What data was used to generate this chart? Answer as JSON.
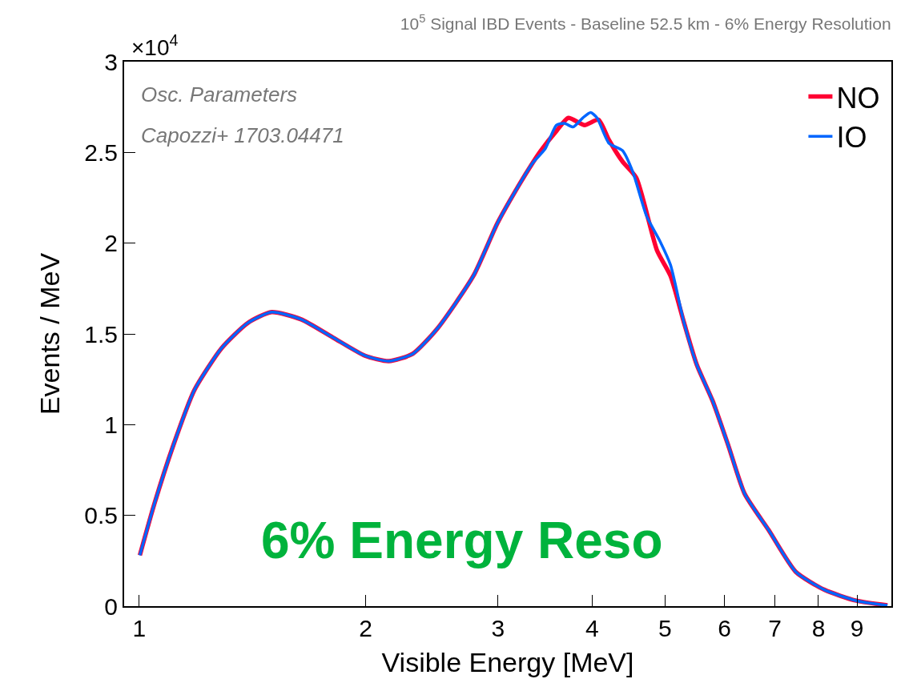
{
  "chart_data": {
    "type": "line",
    "title": "10$^{5}$ Signal IBD Events - Baseline 52.5 km - 6% Energy Resolution",
    "xlabel": "Visible Energy [MeV]",
    "ylabel": "Events / MeV",
    "annotations": [
      "×10$^{4}$",
      "Osc. Parameters",
      "Capozzi+ 1703.04471",
      "6% Energy Reso"
    ],
    "log": "x",
    "xlim": [
      0.955,
      10
    ],
    "xticks": [
      1,
      2,
      3,
      4,
      5,
      6,
      7,
      8,
      9
    ],
    "ylim": [
      0,
      3
    ],
    "yticks": [
      0,
      0.5,
      1,
      1.5,
      2,
      2.5,
      3
    ],
    "legend": "top right",
    "marker": "none",
    "line_style": "solid",
    "series": [
      {
        "name": "NO",
        "color": "#ff0033",
        "x": [
          1.002,
          1.047,
          1.111,
          1.184,
          1.286,
          1.394,
          1.5,
          1.642,
          1.81,
          1.996,
          2.147,
          2.31,
          2.492,
          2.782,
          2.994,
          3.198,
          3.332,
          3.42,
          3.59,
          3.72,
          3.91,
          4.08,
          4.21,
          4.39,
          4.58,
          4.88,
          5.086,
          5.302,
          5.512,
          5.787,
          6.076,
          6.38,
          6.866,
          7.459,
          8.145,
          8.981,
          9.88
        ],
        "values": [
          0.28,
          0.56,
          0.89,
          1.19,
          1.42,
          1.56,
          1.62,
          1.58,
          1.48,
          1.38,
          1.35,
          1.39,
          1.53,
          1.82,
          2.11,
          2.32,
          2.44,
          2.51,
          2.62,
          2.69,
          2.65,
          2.68,
          2.57,
          2.45,
          2.36,
          1.96,
          1.82,
          1.56,
          1.33,
          1.13,
          0.88,
          0.62,
          0.42,
          0.19,
          0.09,
          0.03,
          0.004
        ]
      },
      {
        "name": "IO",
        "color": "#0066ff",
        "x": [
          1.002,
          1.047,
          1.111,
          1.184,
          1.286,
          1.394,
          1.5,
          1.642,
          1.81,
          1.996,
          2.147,
          2.31,
          2.492,
          2.782,
          2.994,
          3.198,
          3.332,
          3.466,
          3.586,
          3.675,
          3.775,
          3.887,
          3.983,
          4.062,
          4.213,
          4.391,
          4.534,
          4.726,
          4.926,
          5.086,
          5.302,
          5.512,
          5.787,
          6.076,
          6.38,
          6.866,
          7.459,
          8.145,
          8.981,
          9.88
        ],
        "values": [
          0.28,
          0.56,
          0.89,
          1.19,
          1.42,
          1.56,
          1.62,
          1.58,
          1.48,
          1.38,
          1.35,
          1.39,
          1.53,
          1.82,
          2.11,
          2.32,
          2.44,
          2.52,
          2.65,
          2.66,
          2.64,
          2.69,
          2.72,
          2.69,
          2.55,
          2.51,
          2.39,
          2.15,
          2.01,
          1.88,
          1.56,
          1.33,
          1.13,
          0.88,
          0.62,
          0.42,
          0.19,
          0.09,
          0.03,
          0.004
        ]
      }
    ]
  }
}
